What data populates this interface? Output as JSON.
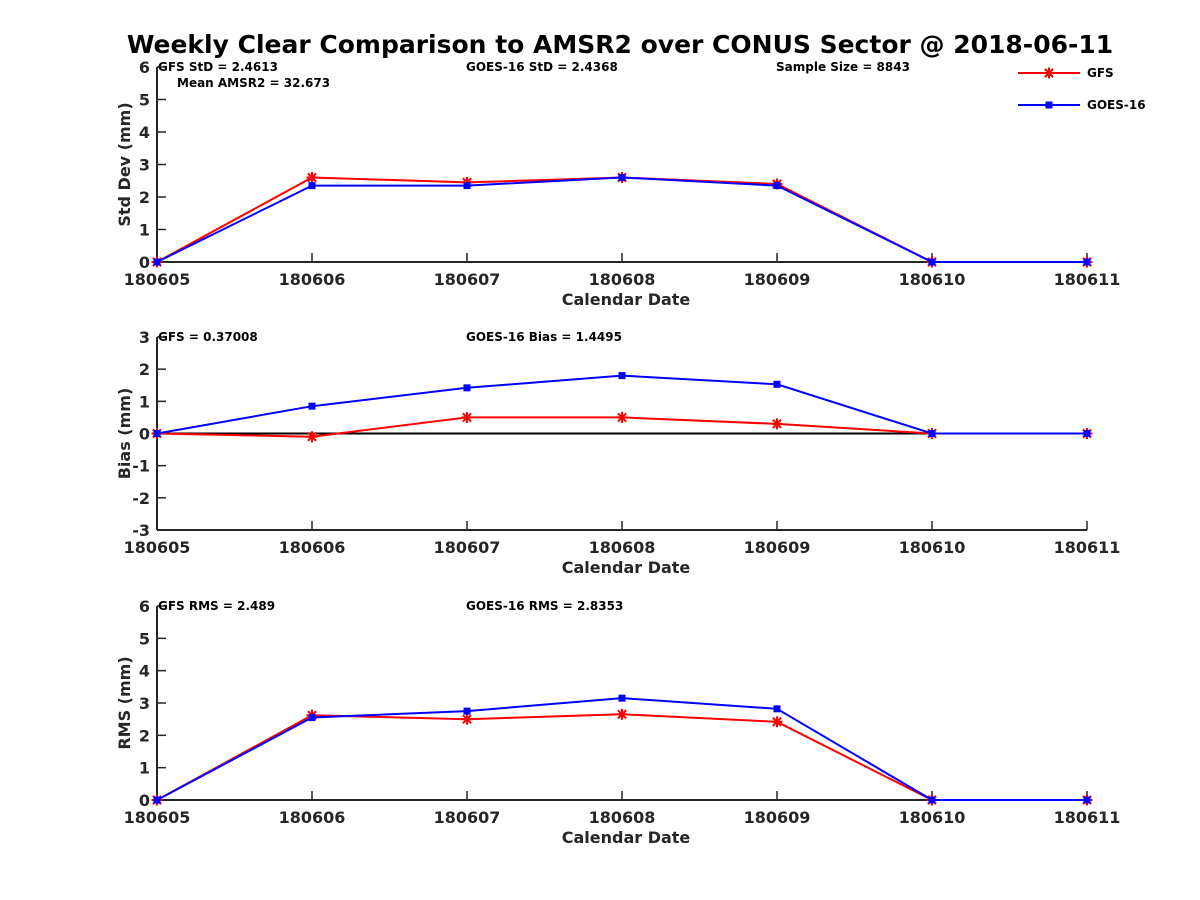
{
  "title": "Weekly Clear Comparison to AMSR2 over CONUS Sector @ 2018-06-11",
  "legend": [
    {
      "name": "GFS",
      "color": "#ff0000",
      "marker": "asterisk"
    },
    {
      "name": "GOES-16",
      "color": "#0000ff",
      "marker": "square"
    }
  ],
  "chart_data": [
    {
      "type": "line",
      "ylabel": "Std Dev (mm)",
      "xlabel": "Calendar Date",
      "categories": [
        "180605",
        "180606",
        "180607",
        "180608",
        "180609",
        "180610",
        "180611"
      ],
      "ylim": [
        0,
        6
      ],
      "yticks": [
        0,
        1,
        2,
        3,
        4,
        5,
        6
      ],
      "zero_line": false,
      "series": [
        {
          "name": "GFS",
          "values": [
            0,
            2.6,
            2.45,
            2.6,
            2.4,
            0,
            0
          ]
        },
        {
          "name": "GOES-16",
          "values": [
            0,
            2.35,
            2.35,
            2.6,
            2.35,
            0,
            0
          ]
        }
      ],
      "annotations": {
        "left": "GFS StD = 2.4613",
        "left2": "Mean AMSR2 = 32.673",
        "middle": "GOES-16 StD = 2.4368",
        "right": "Sample Size = 8843"
      }
    },
    {
      "type": "line",
      "ylabel": "Bias (mm)",
      "xlabel": "Calendar Date",
      "categories": [
        "180605",
        "180606",
        "180607",
        "180608",
        "180609",
        "180610",
        "180611"
      ],
      "ylim": [
        -3,
        3
      ],
      "yticks": [
        -3,
        -2,
        -1,
        0,
        1,
        2,
        3
      ],
      "zero_line": true,
      "series": [
        {
          "name": "GFS",
          "values": [
            0,
            -0.1,
            0.5,
            0.5,
            0.3,
            0,
            0
          ]
        },
        {
          "name": "GOES-16",
          "values": [
            0,
            0.85,
            1.42,
            1.8,
            1.53,
            0,
            0
          ]
        }
      ],
      "annotations": {
        "left": "GFS = 0.37008",
        "left2": "",
        "middle": "GOES-16 Bias  = 1.4495",
        "right": ""
      }
    },
    {
      "type": "line",
      "ylabel": "RMS (mm)",
      "xlabel": "Calendar Date",
      "categories": [
        "180605",
        "180606",
        "180607",
        "180608",
        "180609",
        "180610",
        "180611"
      ],
      "ylim": [
        0,
        6
      ],
      "yticks": [
        0,
        1,
        2,
        3,
        4,
        5,
        6
      ],
      "zero_line": false,
      "series": [
        {
          "name": "GFS",
          "values": [
            0,
            2.62,
            2.5,
            2.65,
            2.42,
            0,
            0
          ]
        },
        {
          "name": "GOES-16",
          "values": [
            0,
            2.55,
            2.75,
            3.15,
            2.82,
            0,
            0
          ]
        }
      ],
      "annotations": {
        "left": "GFS RMS = 2.489",
        "left2": "",
        "middle": "GOES-16 RMS = 2.8353",
        "right": ""
      }
    }
  ]
}
